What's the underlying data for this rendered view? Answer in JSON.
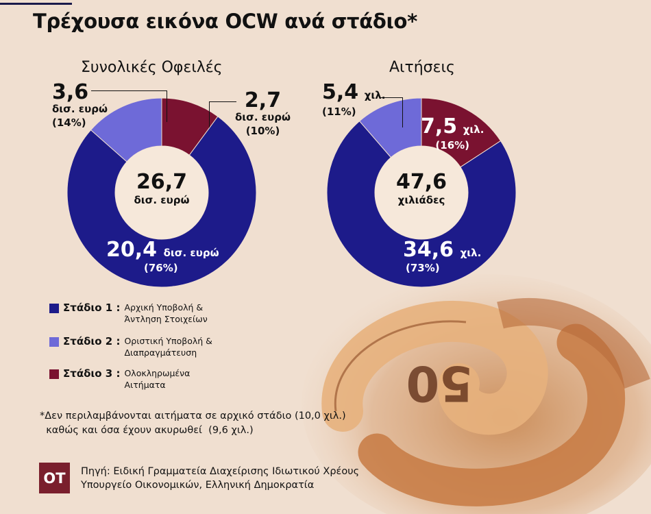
{
  "title": "Τρέχουσα εικόνα OCW ανά στάδιο*",
  "colors": {
    "stage1": "#1d1b8a",
    "stage2": "#6e6ad8",
    "stage3": "#7a1230",
    "hole": "#f6e8da"
  },
  "chart_data": [
    {
      "type": "pie",
      "title": "Συνολικές Οφειλές",
      "categories": [
        "Στάδιο 1",
        "Στάδιο 2",
        "Στάδιο 3"
      ],
      "values": [
        20.4,
        3.6,
        2.7
      ],
      "percent": [
        76,
        14,
        10
      ],
      "total": "26,7",
      "total_unit": "δισ. ευρώ",
      "labels": [
        {
          "value": "20,4",
          "unit": "δισ. ευρώ",
          "pct": "(76%)"
        },
        {
          "value": "3,6",
          "unit": "δισ. ευρώ",
          "pct": "(14%)"
        },
        {
          "value": "2,7",
          "unit": "δισ. ευρώ",
          "pct": "(10%)"
        }
      ]
    },
    {
      "type": "pie",
      "title": "Αιτήσεις",
      "categories": [
        "Στάδιο 1",
        "Στάδιο 2",
        "Στάδιο 3"
      ],
      "values": [
        34.6,
        5.4,
        7.5
      ],
      "percent": [
        73,
        11,
        16
      ],
      "total": "47,6",
      "total_unit": "χιλιάδες",
      "labels": [
        {
          "value": "34,6",
          "unit": "χιλ.",
          "pct": "(73%)"
        },
        {
          "value": "5,4",
          "unit": "χιλ.",
          "pct": "(11%)"
        },
        {
          "value": "7,5",
          "unit": "χιλ.",
          "pct": "(16%)"
        }
      ]
    }
  ],
  "legend": [
    {
      "name": "Στάδιο 1 :",
      "desc1": "Αρχική Υποβολή &",
      "desc2": "Άντληση Στοιχείων"
    },
    {
      "name": "Στάδιο 2 :",
      "desc1": "Οριστική Υποβολή &",
      "desc2": "Διαπραγμάτευση"
    },
    {
      "name": "Στάδιο 3 :",
      "desc1": "Ολοκληρωμένα",
      "desc2": "Αιτήματα"
    }
  ],
  "footnote": "*Δεν περιλαμβάνονται αιτήματα σε αρχικό στάδιο (10,0 χιλ.)\n  καθώς και όσα έχουν ακυρωθεί  (9,6 χιλ.)",
  "logo": "OT",
  "source": {
    "line1": "Πηγή: Ειδική Γραμματεία Διαχείρισης Ιδιωτικού Χρέους",
    "line2": "Υπουργείο Οικονομικών, Ελληνική Δημοκρατία"
  }
}
